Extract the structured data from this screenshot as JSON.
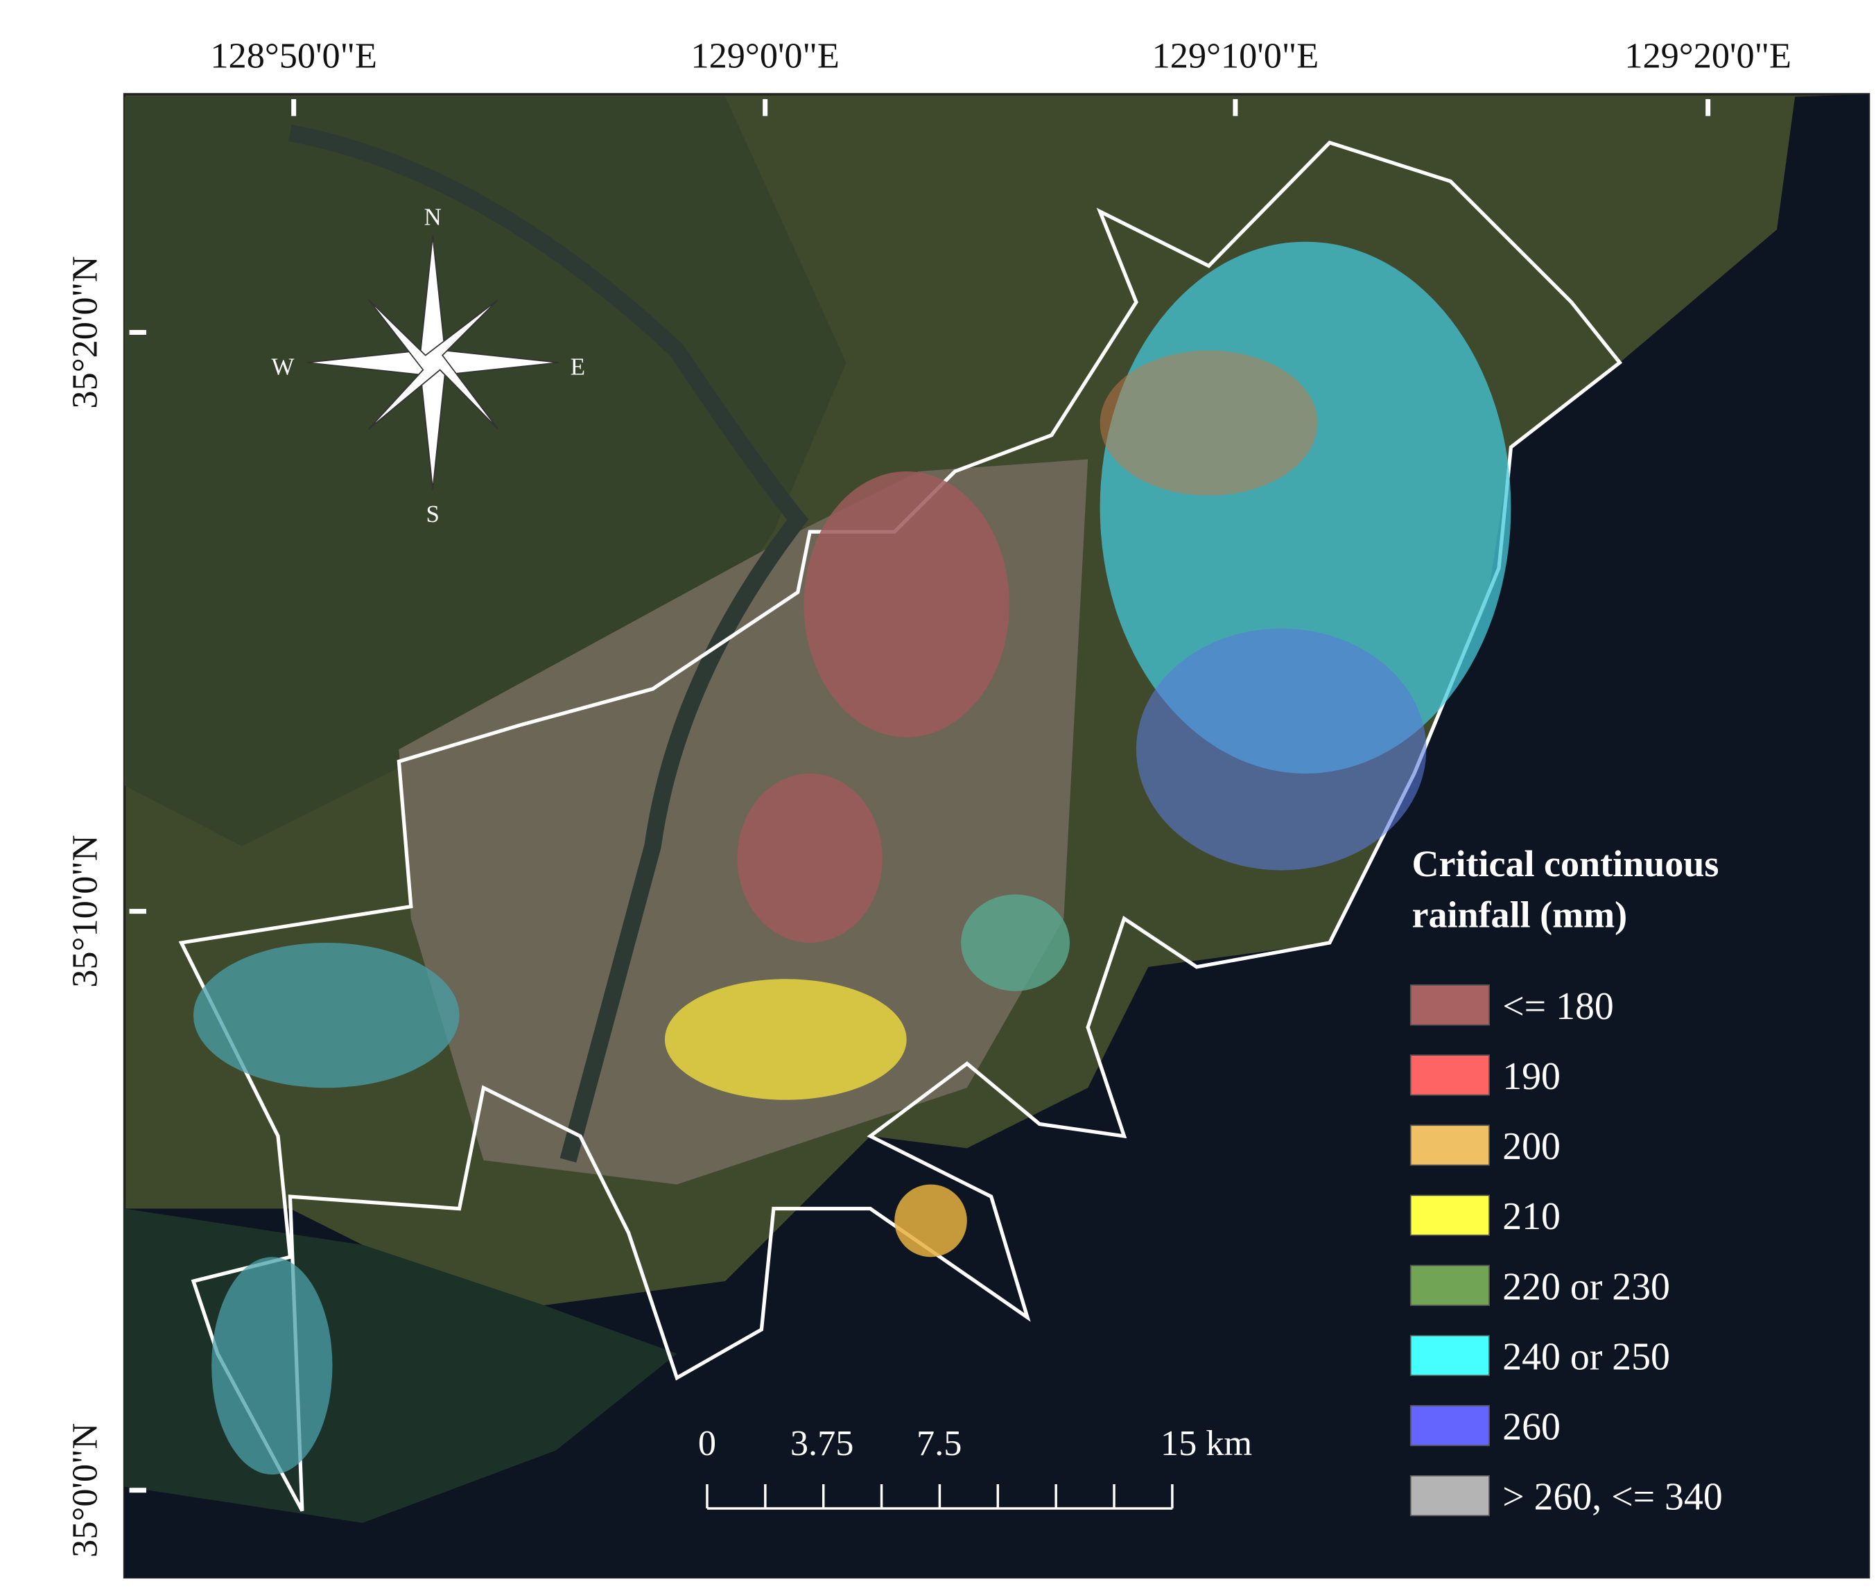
{
  "map": {
    "longitude_labels": [
      "128°50'0\"E",
      "129°0'0\"E",
      "129°10'0\"E",
      "129°20'0\"E"
    ],
    "latitude_labels": [
      "35°20'0\"N",
      "35°10'0\"N",
      "35°0'0\"N"
    ],
    "compass": {
      "north": "N",
      "south": "S",
      "east": "E",
      "west": "W"
    },
    "legend": {
      "title": [
        "Critical continuous",
        "rainfall (mm)"
      ],
      "items": [
        {
          "label": "<= 180",
          "color": "#a86262"
        },
        {
          "label": "190",
          "color": "#ff6464"
        },
        {
          "label": "200",
          "color": "#f0c064"
        },
        {
          "label": "210",
          "color": "#ffff46"
        },
        {
          "label": "220 or 230",
          "color": "#72a456"
        },
        {
          "label": "240 or 250",
          "color": "#46ffff"
        },
        {
          "label": "260",
          "color": "#6464ff"
        },
        {
          "label": "> 260, <= 340",
          "color": "#b4b4b4"
        }
      ]
    },
    "scale_bar": {
      "labels": [
        "0",
        "3.75",
        "7.5",
        "15 km"
      ]
    }
  }
}
